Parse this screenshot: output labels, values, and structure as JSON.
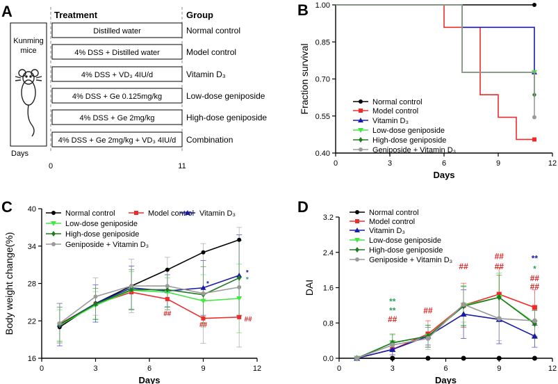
{
  "panels": {
    "A": "A",
    "B": "B",
    "C": "C",
    "D": "D"
  },
  "design": {
    "header_treatment": "Treatment",
    "header_group": "Group",
    "subject": [
      "Kunming",
      "mice"
    ],
    "days_label": "Days",
    "day_start": "0",
    "day_end": "11",
    "rows": [
      {
        "treatment": "Distilled water",
        "group": "Normal control"
      },
      {
        "treatment": "4% DSS + Distilled water",
        "group": "Model control"
      },
      {
        "treatment": "4% DSS + VD₃ 4IU/d",
        "group": "Vitamin D₃"
      },
      {
        "treatment": "4% DSS + Ge 0.125mg/kg",
        "group": "Low-dose geniposide"
      },
      {
        "treatment": "4% DSS + Ge 2mg/kg",
        "group": "High-dose geniposide"
      },
      {
        "treatment": "4% DSS + Ge 2mg/kg + VD₃ 4IU/d",
        "group": "Combination"
      }
    ]
  },
  "colors": {
    "normal": "#000000",
    "model": "#ee2b2b",
    "vitd": "#1a1aa8",
    "low": "#44e644",
    "high": "#1e7a1e",
    "combo": "#9a9a9a",
    "sig_green": "#2e9e5b",
    "sig_red": "#dd2222",
    "sig_blue": "#1a1aa8"
  },
  "chart_data": [
    {
      "panel": "B",
      "type": "line",
      "style": "step",
      "title": "",
      "xlabel": "Days",
      "ylabel": "Fraction survival",
      "xlim": [
        0,
        12
      ],
      "ylim": [
        0.4,
        1.0
      ],
      "xticks": [
        "0",
        "3",
        "6",
        "9",
        "12"
      ],
      "yticks": [
        "0.40",
        "0.55",
        "0.70",
        "0.85",
        "1.00"
      ],
      "legend_position": "lower-left",
      "series": [
        {
          "name": "Normal control",
          "key": "normal",
          "marker": "circle",
          "x": [
            0,
            11
          ],
          "y": [
            1.0,
            1.0
          ]
        },
        {
          "name": "Model control",
          "key": "model",
          "marker": "square",
          "x": [
            0,
            6,
            8,
            9,
            10,
            11
          ],
          "y": [
            1.0,
            0.909,
            0.636,
            0.545,
            0.455,
            0.455
          ]
        },
        {
          "name": "Vitamin D₃",
          "key": "vitd",
          "marker": "triangle",
          "x": [
            0,
            7,
            11
          ],
          "y": [
            1.0,
            0.909,
            0.727
          ]
        },
        {
          "name": "Low-dose geniposide",
          "key": "low",
          "marker": "triangle-down",
          "x": [
            0,
            7,
            11
          ],
          "y": [
            1.0,
            0.727,
            0.727
          ]
        },
        {
          "name": "High-dose geniposide",
          "key": "high",
          "marker": "diamond",
          "x": [
            0,
            7,
            11,
            11
          ],
          "y": [
            1.0,
            0.727,
            0.727,
            0.636
          ]
        },
        {
          "name": "Geniposide + Vitamin D₃",
          "key": "combo",
          "marker": "circle",
          "x": [
            0,
            7,
            11
          ],
          "y": [
            1.0,
            0.727,
            0.545
          ]
        }
      ]
    },
    {
      "panel": "C",
      "type": "line",
      "title": "",
      "xlabel": "Days",
      "ylabel": "Body weight change(%)",
      "xlim": [
        0,
        12
      ],
      "ylim": [
        16,
        40
      ],
      "xticks": [
        "0",
        "3",
        "6",
        "9",
        "12"
      ],
      "yticks": [
        "16",
        "22",
        "28",
        "34",
        "40"
      ],
      "legend_position": "top-left",
      "x": [
        1,
        3,
        5,
        7,
        9,
        11
      ],
      "series": [
        {
          "name": "Normal control",
          "key": "normal",
          "marker": "circle",
          "values": [
            21.0,
            24.8,
            27.6,
            30.2,
            33.0,
            35.0
          ],
          "err": [
            0,
            0,
            0,
            0,
            0,
            0
          ]
        },
        {
          "name": "Model control",
          "key": "model",
          "marker": "square",
          "values": [
            21.5,
            24.7,
            26.6,
            25.5,
            22.4,
            22.6
          ],
          "err": [
            0,
            0,
            0,
            0,
            0,
            0
          ]
        },
        {
          "name": "Vitamin D₃",
          "key": "vitd",
          "marker": "triangle",
          "values": [
            21.4,
            24.8,
            27.3,
            26.8,
            27.3,
            29.3
          ],
          "err": [
            3.4,
            3.0,
            3.5,
            2.6,
            4.4,
            6.5
          ]
        },
        {
          "name": "Low-dose geniposide",
          "key": "low",
          "marker": "triangle-down",
          "values": [
            21.3,
            24.5,
            26.9,
            26.6,
            25.2,
            25.6
          ],
          "err": [
            2.5,
            2.2,
            3.0,
            2.3,
            4.2,
            5.5
          ]
        },
        {
          "name": "High-dose geniposide",
          "key": "high",
          "marker": "diamond",
          "values": [
            21.4,
            24.7,
            27.0,
            27.0,
            26.2,
            28.9
          ],
          "err": [
            2.8,
            2.5,
            3.2,
            3.2,
            4.5,
            6.0
          ]
        },
        {
          "name": "Geniposide + Vitamin D₃",
          "key": "combo",
          "marker": "circle",
          "values": [
            21.6,
            25.9,
            27.6,
            27.6,
            26.4,
            27.4
          ],
          "err": [
            3.2,
            3.0,
            4.3,
            4.6,
            8.0,
            9.6
          ]
        }
      ],
      "annotations": [
        {
          "x": 7,
          "y": 22.8,
          "text": "##",
          "color_key": "sig_red"
        },
        {
          "x": 9,
          "y": 21.0,
          "text": "##",
          "color_key": "sig_red"
        },
        {
          "x": 11.5,
          "y": 21.9,
          "text": "##",
          "color_key": "sig_red"
        },
        {
          "x": 9.25,
          "y": 27.6,
          "text": "*",
          "color_key": "sig_blue"
        },
        {
          "x": 11.45,
          "y": 29.4,
          "text": "*",
          "color_key": "sig_blue"
        },
        {
          "x": 11.45,
          "y": 28.3,
          "text": "*",
          "color_key": "sig_green"
        }
      ]
    },
    {
      "panel": "D",
      "type": "line",
      "title": "",
      "xlabel": "Days",
      "ylabel": "DAI",
      "xlim": [
        0,
        12
      ],
      "ylim": [
        0,
        3.2
      ],
      "xticks": [
        "0",
        "3",
        "6",
        "9",
        "12"
      ],
      "yticks": [
        "0.0",
        "0.8",
        "1.6",
        "2.4",
        "3.2"
      ],
      "legend_position": "top-left",
      "x": [
        1,
        3,
        5,
        7,
        9,
        11
      ],
      "series": [
        {
          "name": "Normal control",
          "key": "normal",
          "marker": "circle",
          "values": [
            0,
            0,
            0,
            0,
            0,
            0
          ],
          "err": [
            0,
            0,
            0,
            0,
            0,
            0
          ]
        },
        {
          "name": "Model control",
          "key": "model",
          "marker": "square",
          "values": [
            0,
            0.2,
            0.55,
            1.2,
            1.45,
            1.15
          ],
          "err": [
            0,
            0.2,
            0.3,
            0.5,
            0.6,
            0.4
          ]
        },
        {
          "name": "Vitamin D₃",
          "key": "vitd",
          "marker": "triangle",
          "values": [
            0,
            0.2,
            0.5,
            1.0,
            0.88,
            0.5
          ],
          "err": [
            0,
            0.12,
            0.2,
            0.55,
            0.55,
            0.25
          ]
        },
        {
          "name": "Low-dose geniposide",
          "key": "low",
          "marker": "triangle-down",
          "values": [
            0,
            0.35,
            0.5,
            1.2,
            1.38,
            0.8
          ],
          "err": [
            0,
            0.18,
            0.25,
            0.45,
            0.55,
            0.3
          ]
        },
        {
          "name": "High-dose geniposide",
          "key": "high",
          "marker": "diamond",
          "values": [
            0,
            0.35,
            0.5,
            1.18,
            1.38,
            0.78
          ],
          "err": [
            0,
            0.2,
            0.25,
            0.45,
            0.5,
            0.3
          ]
        },
        {
          "name": "Geniposide + Vitamin D₃",
          "key": "combo",
          "marker": "circle",
          "values": [
            0,
            0.3,
            0.45,
            1.22,
            0.9,
            0.85
          ],
          "err": [
            0,
            0.25,
            0.25,
            0.4,
            0.5,
            0.35
          ]
        }
      ],
      "annotations": [
        {
          "x": 3,
          "y": 0.82,
          "text": "##",
          "color_key": "sig_red"
        },
        {
          "x": 3,
          "y": 1.02,
          "text": "**",
          "color_key": "sig_green"
        },
        {
          "x": 3,
          "y": 1.22,
          "text": "**",
          "color_key": "sig_green"
        },
        {
          "x": 5,
          "y": 1.02,
          "text": "##",
          "color_key": "sig_red"
        },
        {
          "x": 7,
          "y": 2.02,
          "text": "##",
          "color_key": "sig_red"
        },
        {
          "x": 9,
          "y": 2.02,
          "text": "##",
          "color_key": "sig_red"
        },
        {
          "x": 9,
          "y": 2.25,
          "text": "##",
          "color_key": "sig_red"
        },
        {
          "x": 11,
          "y": 1.56,
          "text": "##",
          "color_key": "sig_red"
        },
        {
          "x": 11,
          "y": 1.75,
          "text": "##",
          "color_key": "sig_red"
        },
        {
          "x": 11,
          "y": 1.96,
          "text": "*",
          "color_key": "sig_green"
        },
        {
          "x": 11,
          "y": 2.2,
          "text": "**",
          "color_key": "sig_blue"
        }
      ]
    }
  ]
}
